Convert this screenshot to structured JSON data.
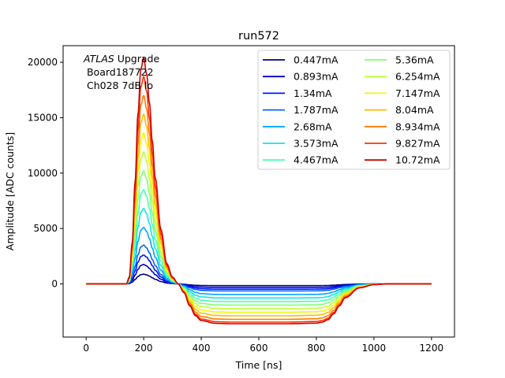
{
  "chart_data": {
    "type": "line",
    "title": "run572",
    "xlabel": "Time [ns]",
    "ylabel": "Amplitude [ADC counts]",
    "xlim": [
      -80,
      1280
    ],
    "ylim": [
      -4800,
      21500
    ],
    "xticks": [
      0,
      200,
      400,
      600,
      800,
      1000,
      1200
    ],
    "yticks": [
      0,
      5000,
      10000,
      15000,
      20000
    ],
    "grid": false,
    "legend_position": "top-right",
    "legend_columns": 2,
    "annotation": {
      "italic": "ATLAS",
      "line1_rest": " Upgrade",
      "line2": " Board187722",
      "line3": " Ch028 7dB lo"
    },
    "waveform_anchor_x": [
      0,
      130,
      140,
      150,
      160,
      170,
      180,
      190,
      200,
      210,
      220,
      230,
      240,
      260,
      280,
      300,
      320,
      340,
      360,
      380,
      400,
      450,
      500,
      600,
      700,
      800,
      820,
      840,
      860,
      880,
      900,
      950,
      1000,
      1050,
      1100,
      1200
    ],
    "series": [
      {
        "name": "0.447mA",
        "color": "#000080",
        "peak": 875,
        "undershoot": -160
      },
      {
        "name": "0.893mA",
        "color": "#0000cd",
        "peak": 1750,
        "undershoot": -320
      },
      {
        "name": "1.34mA",
        "color": "#0014ff",
        "peak": 2600,
        "undershoot": -480
      },
      {
        "name": "1.787mA",
        "color": "#0064ff",
        "peak": 3500,
        "undershoot": -640
      },
      {
        "name": "2.68mA",
        "color": "#00a4ff",
        "peak": 5100,
        "undershoot": -960
      },
      {
        "name": "3.573mA",
        "color": "#0fe4e7",
        "peak": 6800,
        "undershoot": -1280
      },
      {
        "name": "4.467mA",
        "color": "#4affad",
        "peak": 8500,
        "undershoot": -1600
      },
      {
        "name": "5.36mA",
        "color": "#83ff73",
        "peak": 10200,
        "undershoot": -1920
      },
      {
        "name": "6.254mA",
        "color": "#beff3a",
        "peak": 11900,
        "undershoot": -2240
      },
      {
        "name": "7.147mA",
        "color": "#f8f500",
        "peak": 13600,
        "undershoot": -2560
      },
      {
        "name": "8.04mA",
        "color": "#ffb900",
        "peak": 15300,
        "undershoot": -2880
      },
      {
        "name": "8.934mA",
        "color": "#ff7a00",
        "peak": 17000,
        "undershoot": -3200
      },
      {
        "name": "9.827mA",
        "color": "#ff3000",
        "peak": 18700,
        "undershoot": -3450
      },
      {
        "name": "10.72mA",
        "color": "#cd0000",
        "peak": 20400,
        "undershoot": -3600
      }
    ]
  }
}
